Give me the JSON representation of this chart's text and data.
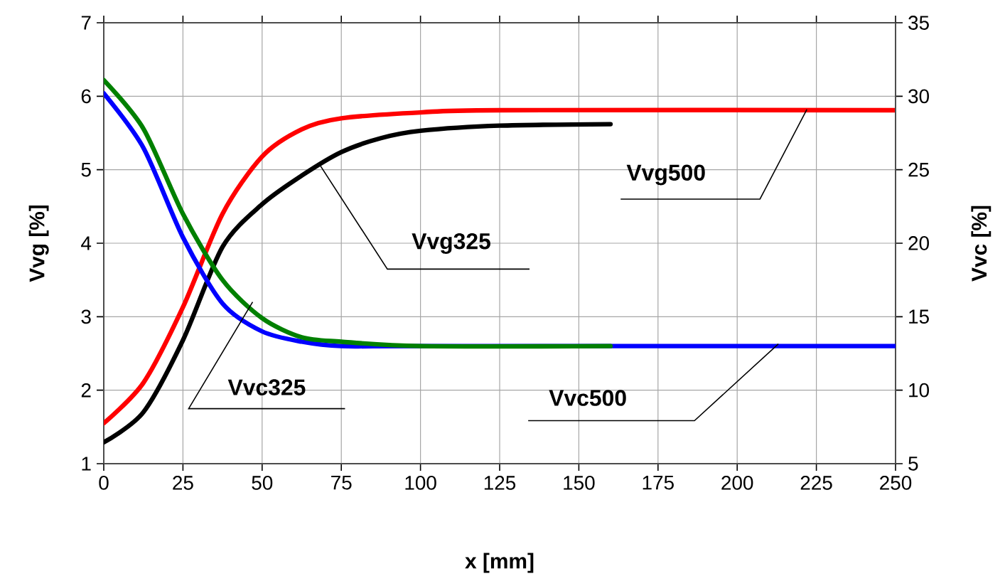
{
  "chart_data": {
    "type": "line",
    "xlabel": "x [mm]",
    "ylabel": "Vvg [%]",
    "y2label": "Vvc [%]",
    "xlim": [
      0,
      250
    ],
    "xticks": [
      0,
      25,
      50,
      75,
      100,
      125,
      150,
      175,
      200,
      225,
      250
    ],
    "ylim": [
      1,
      7
    ],
    "yticks": [
      1,
      2,
      3,
      4,
      5,
      6,
      7
    ],
    "y2lim": [
      5,
      35
    ],
    "y2ticks": [
      5,
      10,
      15,
      20,
      25,
      30,
      35
    ],
    "grid": true,
    "line_style": "solid",
    "series": [
      {
        "color": "#ff0000",
        "axis": "y",
        "x": [
          0,
          12.5,
          25,
          37.5,
          50,
          62.5,
          75,
          100,
          125,
          250
        ],
        "values": [
          1.55,
          2.1,
          3.13,
          4.4,
          5.18,
          5.55,
          5.7,
          5.78,
          5.81,
          5.81
        ]
      },
      {
        "color": "#000000",
        "axis": "y",
        "x": [
          0,
          12.5,
          25,
          37.5,
          50,
          62.5,
          75,
          87.5,
          100,
          125,
          160
        ],
        "values": [
          1.29,
          1.7,
          2.68,
          3.95,
          4.53,
          4.92,
          5.24,
          5.43,
          5.53,
          5.6,
          5.62
        ]
      },
      {
        "color": "#0000ff",
        "axis": "y2",
        "x": [
          0,
          12.5,
          25,
          37.5,
          50,
          62.5,
          75,
          100,
          250
        ],
        "values": [
          30.2,
          26.5,
          20.4,
          15.9,
          14.0,
          13.3,
          13.0,
          13.0,
          13.0
        ]
      },
      {
        "color": "#008000",
        "axis": "y2",
        "x": [
          0,
          12.5,
          25,
          37.5,
          50,
          62.5,
          75,
          100,
          160
        ],
        "values": [
          31.1,
          27.8,
          22.0,
          17.5,
          14.9,
          13.6,
          13.3,
          13.0,
          13.0
        ]
      }
    ],
    "annotations": [
      {
        "text": "Vvg325",
        "x": 68,
        "y": 5.08
      },
      {
        "text": "Vvc325",
        "x": 47,
        "y": 3.2
      },
      {
        "text": "Vvg500",
        "x": 222,
        "y": 5.82
      },
      {
        "text": "Vvc500",
        "x": 213,
        "y": 2.63
      }
    ]
  }
}
